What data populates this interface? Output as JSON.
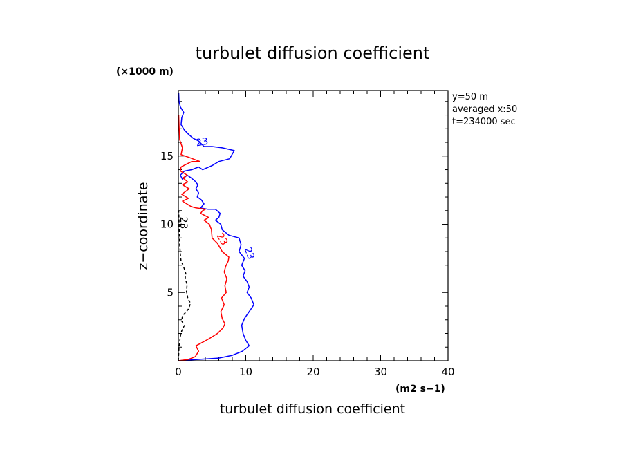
{
  "chart_data": {
    "type": "line",
    "title": "turbulet diffusion coefficient",
    "xlabel": "turbulet diffusion coefficient",
    "ylabel": "z−coordinate",
    "x_unit": "(m2 s−1)",
    "y_unit": "(×1000 m)",
    "xlim": [
      0,
      40
    ],
    "ylim": [
      0,
      19.8
    ],
    "x_ticks": [
      "0",
      "10",
      "20",
      "30",
      "40"
    ],
    "y_ticks": [
      "5",
      "10",
      "15"
    ],
    "x_tick_values": [
      0,
      10,
      20,
      30,
      40
    ],
    "y_tick_values": [
      5,
      10,
      15
    ],
    "grid": false,
    "info": [
      "y=50  m",
      "averaged  x:50",
      "t=234000 sec"
    ],
    "series": [
      {
        "color": "#0000ff",
        "style": "solid",
        "contour_label": "23",
        "points": [
          [
            0,
            0
          ],
          [
            3,
            0.1
          ],
          [
            6,
            0.2
          ],
          [
            8,
            0.4
          ],
          [
            9.5,
            0.7
          ],
          [
            10.5,
            1.1
          ],
          [
            10,
            1.5
          ],
          [
            9.6,
            2.0
          ],
          [
            9.4,
            2.6
          ],
          [
            9.8,
            3.1
          ],
          [
            10.5,
            3.6
          ],
          [
            11.2,
            4.1
          ],
          [
            10.8,
            4.6
          ],
          [
            10.2,
            5.0
          ],
          [
            10.5,
            5.4
          ],
          [
            10.2,
            5.8
          ],
          [
            9.6,
            6.2
          ],
          [
            9.9,
            6.6
          ],
          [
            9.4,
            7.0
          ],
          [
            9.8,
            7.5
          ],
          [
            9.0,
            8.0
          ],
          [
            9.3,
            8.5
          ],
          [
            9.0,
            9.0
          ],
          [
            7.5,
            9.2
          ],
          [
            6.5,
            9.6
          ],
          [
            6.3,
            10.0
          ],
          [
            5.5,
            10.3
          ],
          [
            6.0,
            10.5
          ],
          [
            6.2,
            10.8
          ],
          [
            5.5,
            11.1
          ],
          [
            4.4,
            11.1
          ],
          [
            3.3,
            11.2
          ],
          [
            3.8,
            11.5
          ],
          [
            3.4,
            11.8
          ],
          [
            2.8,
            12.0
          ],
          [
            3.0,
            12.3
          ],
          [
            2.6,
            12.6
          ],
          [
            2.9,
            12.9
          ],
          [
            2.4,
            13.2
          ],
          [
            1.9,
            13.4
          ],
          [
            1.3,
            13.6
          ],
          [
            0.6,
            13.3
          ],
          [
            0.3,
            13.6
          ],
          [
            0.9,
            13.9
          ],
          [
            2.0,
            14.0
          ],
          [
            3.0,
            14.2
          ],
          [
            3.6,
            14.0
          ],
          [
            5.0,
            14.3
          ],
          [
            6.0,
            14.6
          ],
          [
            7.6,
            14.8
          ],
          [
            8.3,
            15.4
          ],
          [
            6.5,
            15.6
          ],
          [
            5.0,
            15.7
          ],
          [
            3.8,
            15.7
          ],
          [
            3.0,
            16.1
          ],
          [
            2.2,
            16.3
          ],
          [
            1.5,
            16.6
          ],
          [
            0.9,
            16.9
          ],
          [
            0.4,
            17.3
          ],
          [
            0.5,
            17.8
          ],
          [
            0.8,
            18.2
          ],
          [
            0.3,
            18.6
          ],
          [
            0.1,
            19.0
          ],
          [
            0.05,
            19.6
          ]
        ]
      },
      {
        "color": "#ff0000",
        "style": "solid",
        "contour_label": "23",
        "points": [
          [
            0,
            0
          ],
          [
            1.5,
            0.1
          ],
          [
            2.5,
            0.3
          ],
          [
            3.0,
            0.7
          ],
          [
            2.6,
            1.1
          ],
          [
            3.4,
            1.3
          ],
          [
            4.5,
            1.6
          ],
          [
            5.8,
            2.0
          ],
          [
            6.6,
            2.4
          ],
          [
            6.9,
            2.7
          ],
          [
            6.5,
            3.1
          ],
          [
            6.3,
            3.6
          ],
          [
            6.8,
            4.1
          ],
          [
            6.4,
            4.6
          ],
          [
            7.1,
            5.0
          ],
          [
            6.9,
            5.5
          ],
          [
            7.2,
            6.0
          ],
          [
            6.8,
            6.5
          ],
          [
            7.0,
            6.9
          ],
          [
            7.4,
            7.3
          ],
          [
            7.5,
            7.6
          ],
          [
            6.5,
            8.0
          ],
          [
            5.8,
            8.6
          ],
          [
            5.0,
            9.0
          ],
          [
            4.9,
            9.6
          ],
          [
            4.6,
            10.0
          ],
          [
            3.8,
            10.3
          ],
          [
            4.5,
            10.5
          ],
          [
            3.3,
            10.8
          ],
          [
            3.6,
            11.0
          ],
          [
            4.0,
            11.1
          ],
          [
            2.6,
            11.2
          ],
          [
            1.9,
            11.3
          ],
          [
            0.6,
            11.7
          ],
          [
            1.5,
            11.9
          ],
          [
            0.5,
            12.2
          ],
          [
            1.6,
            12.6
          ],
          [
            0.6,
            12.9
          ],
          [
            1.4,
            13.1
          ],
          [
            0.7,
            13.4
          ],
          [
            1.3,
            13.6
          ],
          [
            0.3,
            13.9
          ],
          [
            0.4,
            14.2
          ],
          [
            1.2,
            14.4
          ],
          [
            2.0,
            14.6
          ],
          [
            3.2,
            14.6
          ],
          [
            1.6,
            14.9
          ],
          [
            0.4,
            15.1
          ],
          [
            0.6,
            15.6
          ],
          [
            0.2,
            16.2
          ],
          [
            0.1,
            17.2
          ],
          [
            0.05,
            18.0
          ]
        ]
      },
      {
        "color": "#000000",
        "style": "dashed",
        "contour_label": "23",
        "points": [
          [
            0,
            0
          ],
          [
            0.1,
            1.0
          ],
          [
            0.3,
            1.8
          ],
          [
            0.5,
            2.2
          ],
          [
            0.9,
            2.6
          ],
          [
            0.5,
            2.9
          ],
          [
            0.6,
            3.3
          ],
          [
            1.2,
            3.6
          ],
          [
            1.5,
            3.8
          ],
          [
            1.8,
            4.2
          ],
          [
            1.4,
            4.6
          ],
          [
            1.2,
            5.1
          ],
          [
            1.3,
            5.6
          ],
          [
            1.0,
            6.0
          ],
          [
            1.1,
            6.4
          ],
          [
            0.9,
            6.7
          ],
          [
            0.7,
            7.0
          ],
          [
            0.4,
            7.3
          ],
          [
            0.3,
            7.8
          ],
          [
            0.2,
            8.5
          ],
          [
            0.15,
            9.3
          ],
          [
            0.1,
            10.2
          ],
          [
            0.05,
            11.0
          ]
        ]
      }
    ]
  }
}
